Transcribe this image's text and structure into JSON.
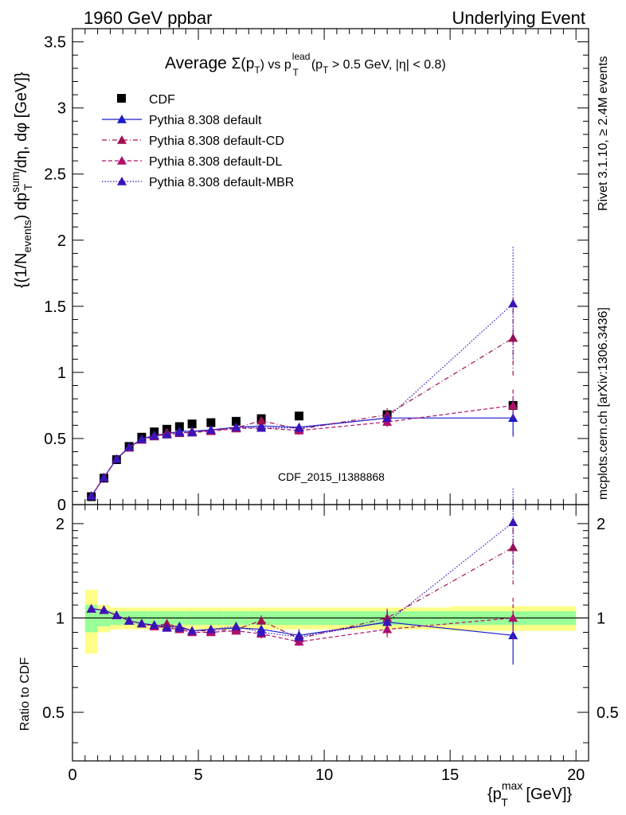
{
  "header": {
    "left": "1960 GeV ppbar",
    "right": "Underlying Event",
    "title_prefix": "Average ",
    "title_main": "Σ(p",
    "title_sub_t": "T",
    "title_mid": ") vs p",
    "title_sup_lead": "lead",
    "title_cut": "(p",
    "title_cut_rest": " > 0.5 GeV, |η| < 0.8)",
    "watermark": "CDF_2015_I1388868",
    "side_rivet": "Rivet 3.1.10, ≥ 2.4M events",
    "side_mcplots": "mcplots.cern.ch [arXiv:1306.3436]"
  },
  "colors": {
    "cdf": "#000000",
    "default": "#1a1acc",
    "cd": "#a0104f",
    "dl": "#b0106a",
    "mbr": "#3a14b8",
    "band_green": "#99ff99",
    "band_yellow": "#ffff88"
  },
  "chart_data": [
    {
      "type": "scatter",
      "panel": "main",
      "ylabel": "{(1/N_events) dp_T^sum/dη, dφ [GeV]}",
      "ylim": [
        0,
        3.6
      ],
      "xlim": [
        0,
        20.5
      ],
      "yticks": [
        "0",
        "0.5",
        "1",
        "1.5",
        "2",
        "2.5",
        "3",
        "3.5"
      ],
      "legend_position": "top-left",
      "legend": [
        "CDF",
        "Pythia 8.308 default",
        "Pythia 8.308 default-CD",
        "Pythia 8.308 default-DL",
        "Pythia 8.308 default-MBR"
      ],
      "x": [
        0.75,
        1.25,
        1.75,
        2.25,
        2.75,
        3.25,
        3.75,
        4.25,
        4.75,
        5.5,
        6.5,
        7.5,
        9.0,
        12.5,
        17.5
      ],
      "series": [
        {
          "name": "CDF",
          "values": [
            0.06,
            0.2,
            0.34,
            0.44,
            0.51,
            0.55,
            0.57,
            0.59,
            0.61,
            0.62,
            0.63,
            0.65,
            0.67,
            0.68,
            0.75
          ]
        },
        {
          "name": "Pythia 8.308 default",
          "values": [
            0.065,
            0.205,
            0.345,
            0.435,
            0.495,
            0.525,
            0.535,
            0.555,
            0.555,
            0.565,
            0.585,
            0.595,
            0.585,
            0.655,
            0.655
          ],
          "yerr": [
            0.005,
            0.005,
            0.005,
            0.005,
            0.005,
            0.005,
            0.005,
            0.005,
            0.005,
            0.01,
            0.015,
            0.02,
            0.03,
            0.06,
            0.14
          ]
        },
        {
          "name": "Pythia 8.308 default-CD",
          "values": [
            0.065,
            0.205,
            0.345,
            0.43,
            0.49,
            0.515,
            0.545,
            0.545,
            0.55,
            0.56,
            0.58,
            0.635,
            0.57,
            0.68,
            1.26
          ],
          "yerr": [
            0.005,
            0.005,
            0.005,
            0.005,
            0.005,
            0.005,
            0.005,
            0.005,
            0.005,
            0.01,
            0.015,
            0.03,
            0.03,
            0.05,
            0.3
          ]
        },
        {
          "name": "Pythia 8.308 default-DL",
          "values": [
            0.065,
            0.205,
            0.345,
            0.43,
            0.49,
            0.52,
            0.53,
            0.54,
            0.545,
            0.555,
            0.575,
            0.58,
            0.56,
            0.625,
            0.75
          ],
          "yerr": [
            0.005,
            0.005,
            0.005,
            0.005,
            0.005,
            0.005,
            0.005,
            0.005,
            0.005,
            0.01,
            0.015,
            0.02,
            0.03,
            0.04,
            0.12
          ]
        },
        {
          "name": "Pythia 8.308 default-MBR",
          "values": [
            0.065,
            0.205,
            0.345,
            0.435,
            0.495,
            0.52,
            0.53,
            0.545,
            0.545,
            0.565,
            0.585,
            0.58,
            0.58,
            0.655,
            1.52
          ],
          "yerr": [
            0.005,
            0.005,
            0.005,
            0.005,
            0.005,
            0.005,
            0.005,
            0.005,
            0.005,
            0.01,
            0.015,
            0.02,
            0.03,
            0.05,
            0.43
          ]
        }
      ]
    },
    {
      "type": "scatter",
      "panel": "ratio",
      "ylabel": "Ratio to CDF",
      "xlabel": "{p_T^max [GeV]}",
      "ylim": [
        0.35,
        2.3
      ],
      "xlim": [
        0,
        20.5
      ],
      "yticks": [
        "0.5",
        "1",
        "2"
      ],
      "xticks": [
        "0",
        "5",
        "10",
        "15",
        "20"
      ],
      "x": [
        0.75,
        1.25,
        1.75,
        2.25,
        2.75,
        3.25,
        3.75,
        4.25,
        4.75,
        5.5,
        6.5,
        7.5,
        9.0,
        12.5,
        17.5
      ],
      "x_bins": [
        [
          0.5,
          1.0
        ],
        [
          1.0,
          1.5
        ],
        [
          1.5,
          2.0
        ],
        [
          2.0,
          2.5
        ],
        [
          2.5,
          3.0
        ],
        [
          3.0,
          3.5
        ],
        [
          3.5,
          4.0
        ],
        [
          4.0,
          4.5
        ],
        [
          4.5,
          5.0
        ],
        [
          5.0,
          6.0
        ],
        [
          6.0,
          7.0
        ],
        [
          7.0,
          8.0
        ],
        [
          8.0,
          10.0
        ],
        [
          10.0,
          15.0
        ],
        [
          15.0,
          20.0
        ]
      ],
      "band_green": [
        0.1,
        0.06,
        0.05,
        0.05,
        0.05,
        0.05,
        0.05,
        0.05,
        0.05,
        0.05,
        0.05,
        0.05,
        0.05,
        0.05,
        0.05
      ],
      "band_yellow": [
        0.23,
        0.1,
        0.08,
        0.08,
        0.08,
        0.08,
        0.08,
        0.08,
        0.08,
        0.08,
        0.08,
        0.08,
        0.08,
        0.08,
        0.09
      ],
      "series": [
        {
          "name": "Pythia 8.308 default",
          "values": [
            1.07,
            1.06,
            1.02,
            0.98,
            0.96,
            0.95,
            0.94,
            0.94,
            0.91,
            0.92,
            0.93,
            0.92,
            0.88,
            0.97,
            0.88
          ],
          "yerr": [
            0.01,
            0.01,
            0.01,
            0.01,
            0.01,
            0.01,
            0.01,
            0.01,
            0.01,
            0.01,
            0.02,
            0.03,
            0.04,
            0.08,
            0.17
          ]
        },
        {
          "name": "Pythia 8.308 default-CD",
          "values": [
            1.07,
            1.06,
            1.02,
            0.98,
            0.96,
            0.94,
            0.96,
            0.93,
            0.91,
            0.91,
            0.92,
            0.98,
            0.86,
            1.0,
            1.68
          ],
          "yerr": [
            0.01,
            0.01,
            0.01,
            0.01,
            0.01,
            0.01,
            0.01,
            0.01,
            0.01,
            0.01,
            0.02,
            0.04,
            0.04,
            0.07,
            0.4
          ]
        },
        {
          "name": "Pythia 8.308 default-DL",
          "values": [
            1.07,
            1.06,
            1.02,
            0.98,
            0.96,
            0.94,
            0.93,
            0.92,
            0.9,
            0.9,
            0.91,
            0.89,
            0.84,
            0.92,
            1.0
          ],
          "yerr": [
            0.01,
            0.01,
            0.01,
            0.01,
            0.01,
            0.01,
            0.01,
            0.01,
            0.01,
            0.01,
            0.02,
            0.03,
            0.04,
            0.06,
            0.16
          ]
        },
        {
          "name": "Pythia 8.308 default-MBR",
          "values": [
            1.07,
            1.06,
            1.02,
            0.98,
            0.96,
            0.95,
            0.93,
            0.93,
            0.91,
            0.92,
            0.94,
            0.9,
            0.87,
            0.97,
            2.02
          ],
          "yerr": [
            0.01,
            0.01,
            0.01,
            0.01,
            0.01,
            0.01,
            0.01,
            0.01,
            0.01,
            0.01,
            0.02,
            0.03,
            0.04,
            0.08,
            0.57
          ]
        }
      ]
    }
  ]
}
